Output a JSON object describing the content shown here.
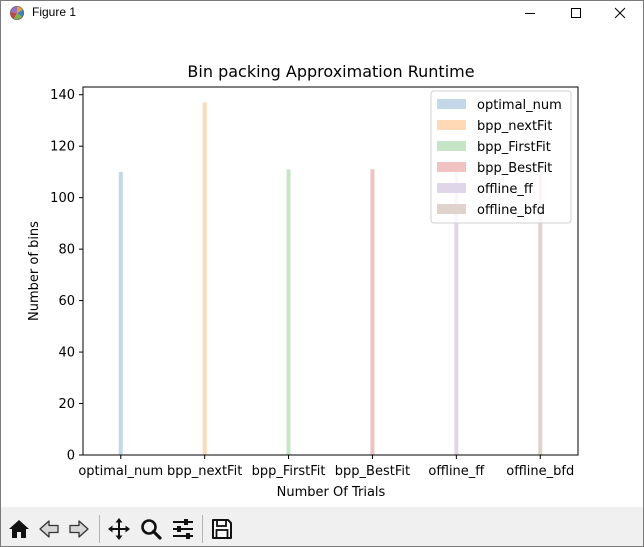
{
  "window": {
    "title": "Figure 1"
  },
  "icons": {
    "app": "matplotlib-logo-icon",
    "minimize": "minimize-icon",
    "maximize": "maximize-icon",
    "close": "close-icon"
  },
  "chart_data": {
    "type": "bar",
    "title": "Bin packing Approximation Runtime",
    "xlabel": "Number Of Trials",
    "ylabel": "Number of bins",
    "categories": [
      "optimal_num",
      "bpp_nextFit",
      "bpp_FirstFit",
      "bpp_BestFit",
      "offline_ff",
      "offline_bfd"
    ],
    "ylim": [
      0,
      143
    ],
    "yticks": [
      0,
      20,
      40,
      60,
      80,
      100,
      120,
      140
    ],
    "legend_position": "top-right",
    "series": [
      {
        "name": "optimal_num",
        "color": "#c3d7e8",
        "values": [
          110,
          0,
          0,
          0,
          0,
          0
        ]
      },
      {
        "name": "bpp_nextFit",
        "color": "#ffd9b6",
        "values": [
          0,
          137,
          0,
          0,
          0,
          0
        ]
      },
      {
        "name": "bpp_FirstFit",
        "color": "#c6e4c6",
        "values": [
          0,
          0,
          111,
          0,
          0,
          0
        ]
      },
      {
        "name": "bpp_BestFit",
        "color": "#f0c2c2",
        "values": [
          0,
          0,
          0,
          111,
          0,
          0
        ]
      },
      {
        "name": "offline_ff",
        "color": "#e0d6ea",
        "values": [
          0,
          0,
          0,
          0,
          110,
          0
        ]
      },
      {
        "name": "offline_bfd",
        "color": "#e0d2cc",
        "values": [
          0,
          0,
          0,
          0,
          0,
          110
        ]
      }
    ]
  },
  "toolbar": {
    "buttons": [
      {
        "name": "home-button",
        "icon": "home-icon"
      },
      {
        "name": "back-button",
        "icon": "back-arrow-icon"
      },
      {
        "name": "forward-button",
        "icon": "forward-arrow-icon"
      },
      {
        "name": "pan-button",
        "icon": "pan-move-icon"
      },
      {
        "name": "zoom-button",
        "icon": "zoom-magnifier-icon"
      },
      {
        "name": "configure-subplots-button",
        "icon": "sliders-icon"
      },
      {
        "name": "save-button",
        "icon": "save-floppy-icon"
      }
    ]
  }
}
